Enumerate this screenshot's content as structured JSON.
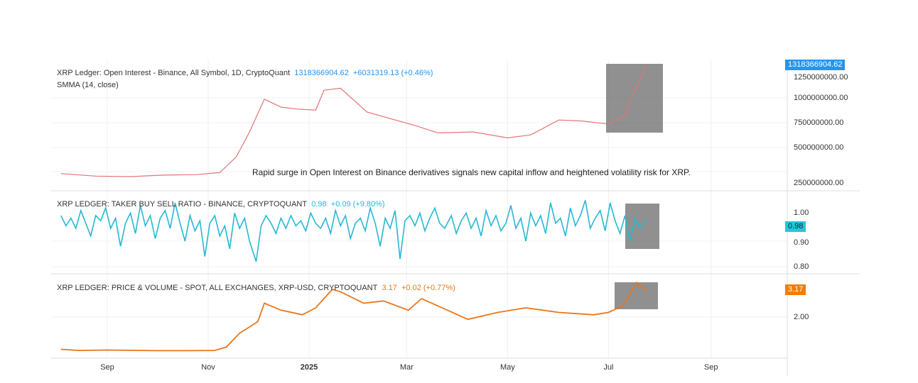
{
  "x_axis": {
    "ticks": [
      "Sep",
      "Nov",
      "2025",
      "Mar",
      "May",
      "Jul",
      "Sep"
    ],
    "tick_dates": [
      "2024-09-01",
      "2024-11-01",
      "2025-01-01",
      "2025-03-01",
      "2025-05-01",
      "2025-07-01",
      "2025-09-01"
    ]
  },
  "annotation": "Rapid surge in Open Interest on Binance derivatives signals new capital inflow and heightened volatility risk for XRP.",
  "chart_data": [
    {
      "type": "line",
      "title": "XRP Ledger: Open Interest - Binance, All Symbol, 1D, CryptoQuant",
      "subtitle": "SMMA (14, close)",
      "last_value": "1318366904.62",
      "change": "+6031319.13 (+0.46%)",
      "color": "#e57373",
      "tag_color": "#2196f3",
      "y_ticks": [
        "1250000000.00",
        "1000000000.00",
        "750000000.00",
        "500000000.00",
        "250000000.00"
      ],
      "x": [
        "2024-08-04",
        "2024-08-25",
        "2024-09-15",
        "2024-10-05",
        "2024-10-25",
        "2024-11-08",
        "2024-11-18",
        "2024-11-26",
        "2024-12-05",
        "2024-12-15",
        "2024-12-25",
        "2025-01-05",
        "2025-01-10",
        "2025-01-20",
        "2025-02-05",
        "2025-02-20",
        "2025-03-05",
        "2025-03-20",
        "2025-04-10",
        "2025-05-01",
        "2025-05-15",
        "2025-06-01",
        "2025-06-15",
        "2025-07-01",
        "2025-07-10",
        "2025-07-18",
        "2025-07-24"
      ],
      "values": [
        230000000.0,
        205000000.0,
        200000000.0,
        215000000.0,
        220000000.0,
        240000000.0,
        400000000.0,
        650000000.0,
        980000000.0,
        900000000.0,
        880000000.0,
        870000000.0,
        1070000000.0,
        1090000000.0,
        850000000.0,
        780000000.0,
        720000000.0,
        640000000.0,
        650000000.0,
        590000000.0,
        620000000.0,
        770000000.0,
        760000000.0,
        730000000.0,
        800000000.0,
        1100000000.0,
        1318000000.0
      ]
    },
    {
      "type": "line",
      "title": "XRP LEDGER: TAKER BUY SELL RATIO - BINANCE, CRYPTOQUANT",
      "last_value": "0.98",
      "change": "+0.09 (+9.80%)",
      "color": "#26b8d4",
      "tag_color": "#26c6da",
      "y_ticks": [
        "1.00",
        "0.90",
        "0.80"
      ],
      "date_range": [
        "2024-08-04",
        "2025-07-24"
      ],
      "values": [
        1.0,
        0.96,
        0.99,
        0.95,
        1.02,
        0.97,
        0.92,
        1.0,
        0.98,
        1.03,
        0.95,
        0.99,
        0.88,
        0.97,
        1.01,
        0.93,
        1.04,
        0.96,
        1.0,
        0.91,
        0.99,
        1.02,
        0.95,
        1.05,
        0.97,
        0.9,
        1.0,
        0.94,
        0.98,
        0.84,
        0.97,
        1.0,
        0.92,
        0.96,
        0.87,
        1.01,
        0.95,
        0.99,
        0.9,
        0.82,
        0.96,
        1.0,
        0.97,
        0.93,
        0.99,
        0.95,
        1.0,
        0.96,
        0.98,
        0.94,
        1.01,
        0.97,
        0.95,
        0.99,
        0.93,
        1.02,
        0.96,
        1.0,
        0.91,
        0.97,
        0.99,
        0.94,
        1.03,
        0.97,
        0.88,
        0.99,
        0.95,
        1.02,
        0.83,
        0.98,
        1.0,
        0.96,
        1.01,
        0.94,
        0.99,
        1.03,
        0.97,
        0.95,
        1.0,
        0.93,
        0.98,
        1.01,
        0.95,
        0.99,
        0.92,
        1.02,
        0.96,
        1.0,
        0.94,
        0.97,
        1.04,
        0.95,
        0.99,
        0.9,
        1.01,
        0.96,
        1.0,
        0.93,
        1.05,
        0.97,
        0.99,
        0.92,
        1.03,
        0.96,
        1.0,
        1.06,
        0.95,
        0.99,
        1.02,
        0.94,
        1.05,
        0.98,
        0.93,
        1.0,
        0.9,
        0.99,
        0.95,
        0.98
      ]
    },
    {
      "type": "line",
      "title": "XRP LEDGER: PRICE & VOLUME - SPOT, ALL EXCHANGES, XRP-USD, CRYPTOQUANT",
      "last_value": "3.17",
      "change": "+0.02 (+0.77%)",
      "color": "#e8761c",
      "tag_color": "#f57c00",
      "y_ticks": [
        "2.00"
      ],
      "x": [
        "2024-08-04",
        "2024-08-15",
        "2024-09-01",
        "2024-10-01",
        "2024-10-20",
        "2024-11-05",
        "2024-11-12",
        "2024-11-20",
        "2024-12-01",
        "2024-12-05",
        "2024-12-15",
        "2024-12-28",
        "2025-01-05",
        "2025-01-15",
        "2025-01-20",
        "2025-02-03",
        "2025-02-15",
        "2025-03-02",
        "2025-03-10",
        "2025-04-07",
        "2025-04-25",
        "2025-05-12",
        "2025-06-01",
        "2025-06-22",
        "2025-07-01",
        "2025-07-10",
        "2025-07-18",
        "2025-07-24"
      ],
      "values": [
        0.6,
        0.55,
        0.57,
        0.54,
        0.54,
        0.55,
        0.7,
        1.3,
        1.8,
        2.6,
        2.3,
        2.1,
        2.4,
        3.2,
        3.1,
        2.6,
        2.7,
        2.3,
        2.8,
        1.9,
        2.2,
        2.4,
        2.2,
        2.1,
        2.2,
        2.5,
        3.5,
        3.17
      ]
    }
  ]
}
